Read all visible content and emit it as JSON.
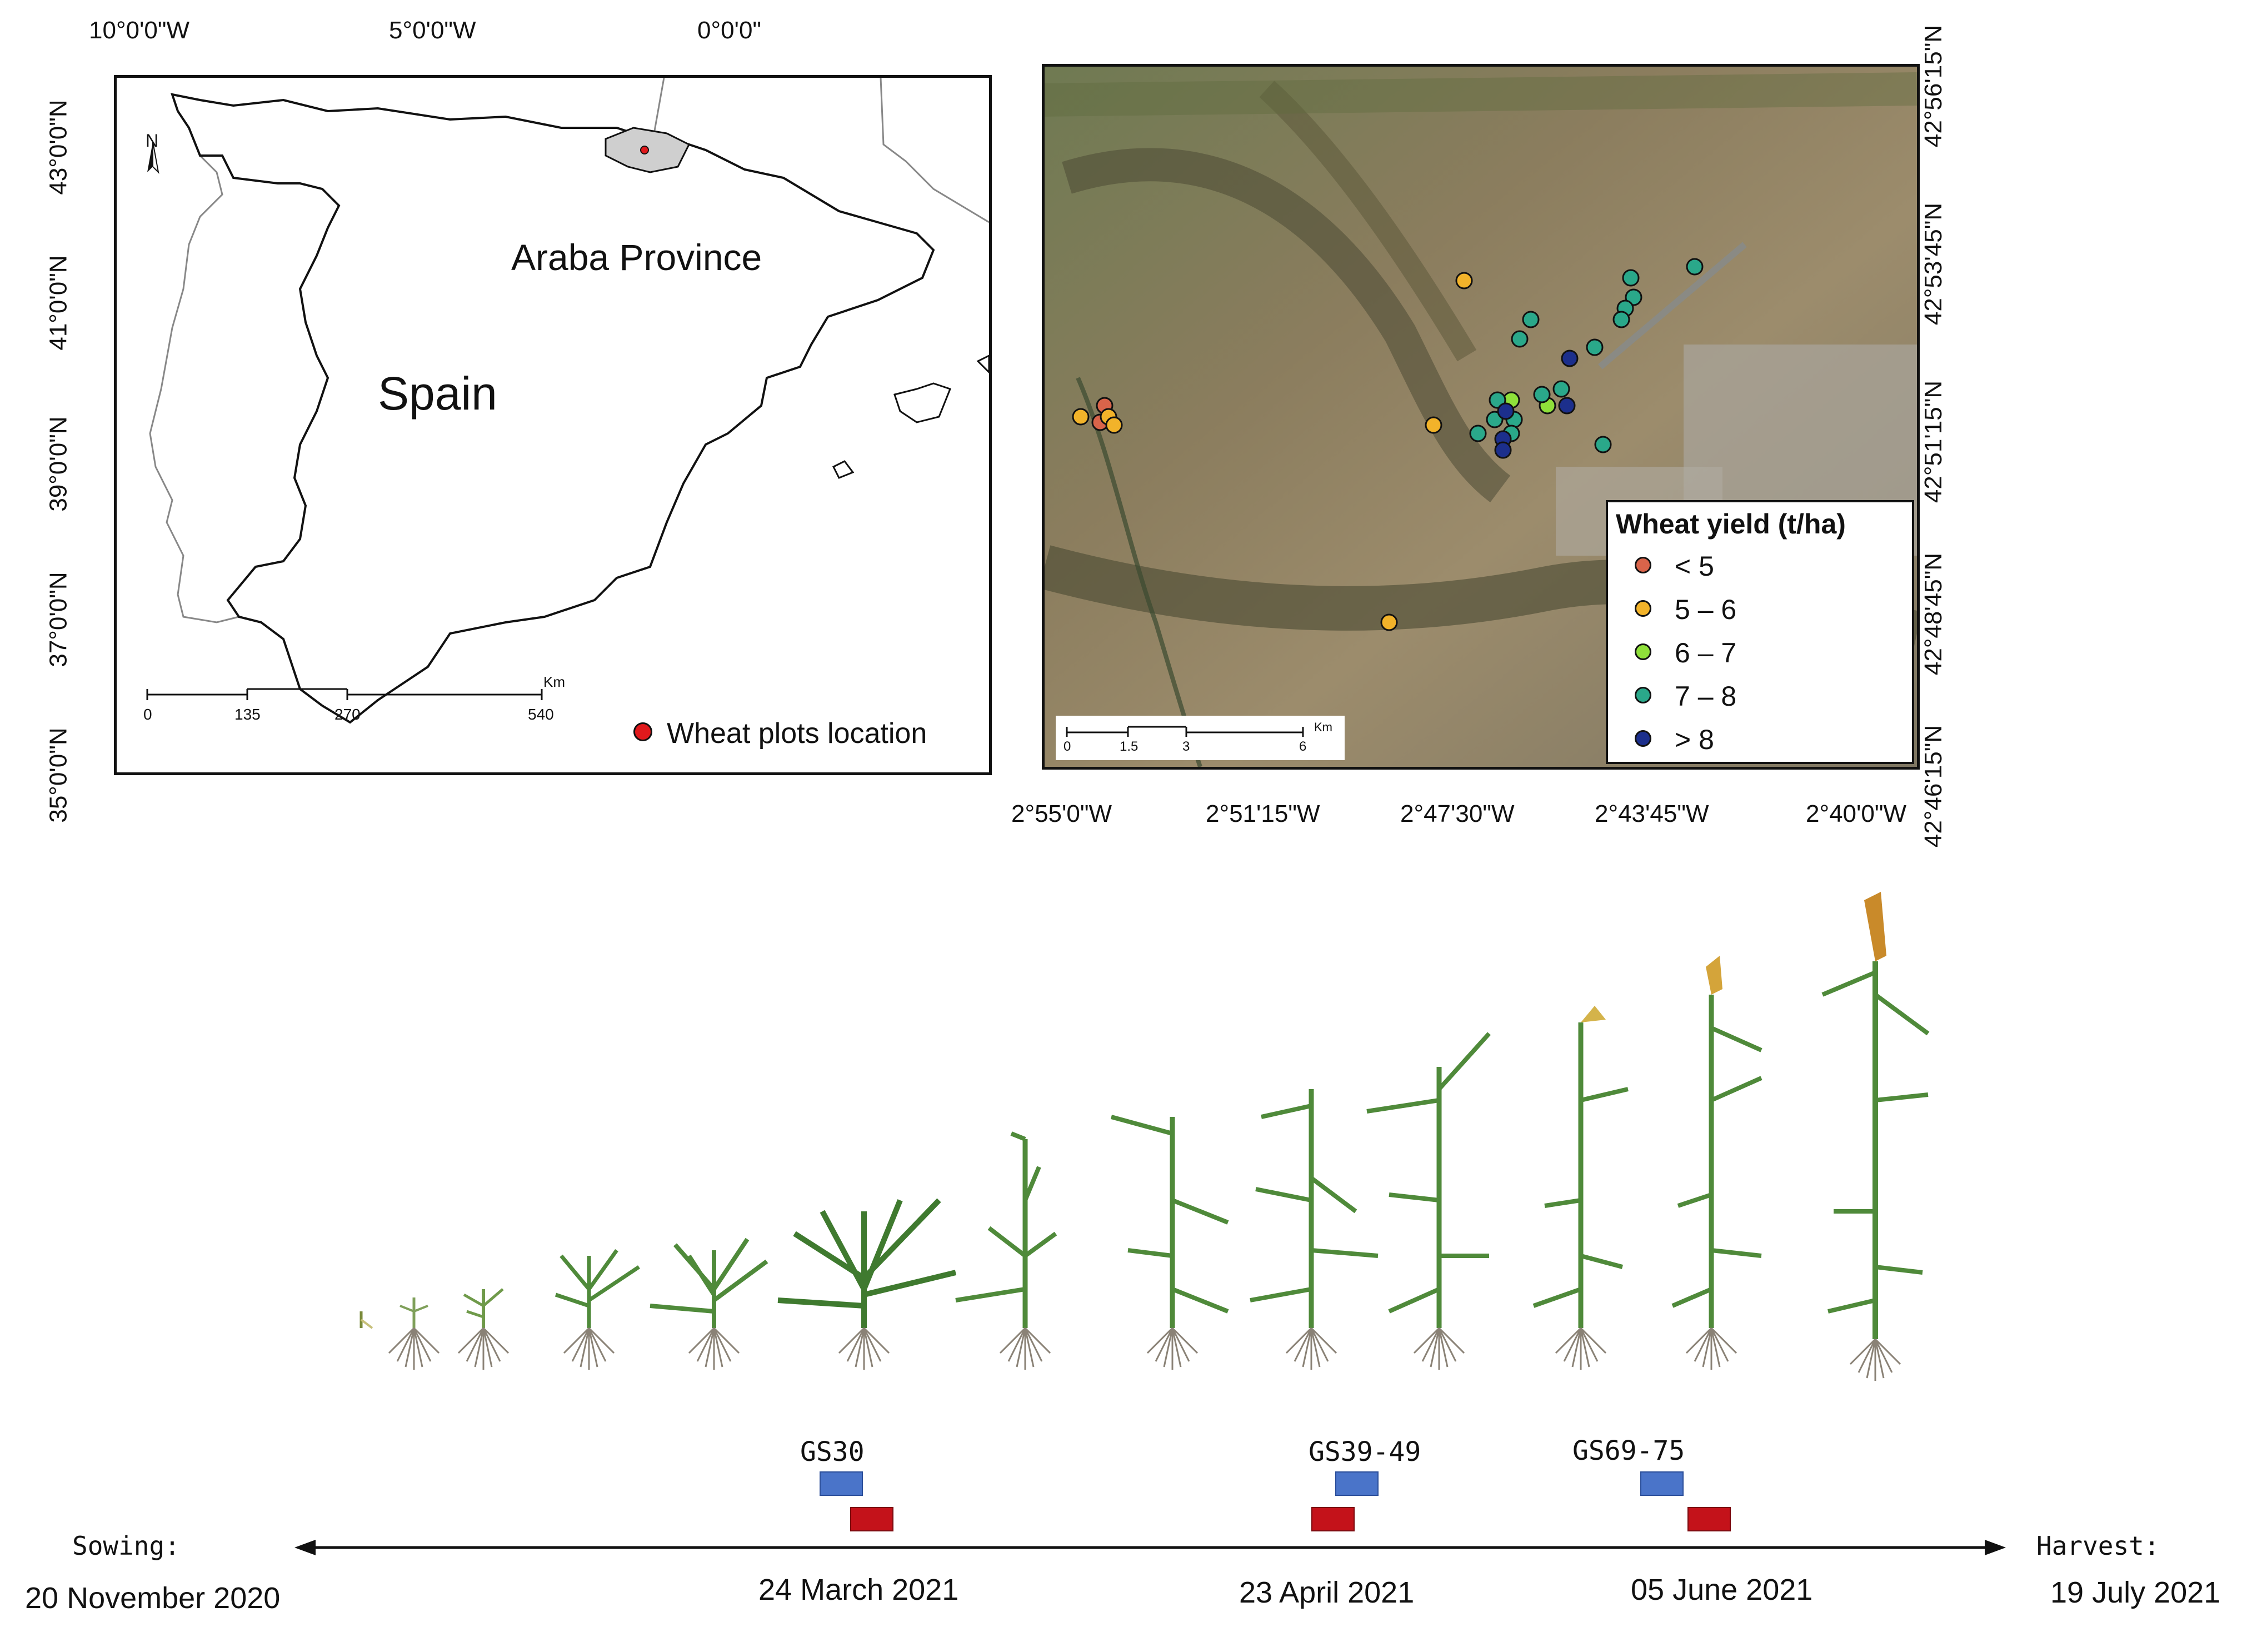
{
  "left_map": {
    "top_coords": [
      "10°0'0\"W",
      "5°0'0\"W",
      "0°0'0\""
    ],
    "left_coords": [
      "43°0'0\"N",
      "41°0'0\"N",
      "39°0'0\"N",
      "37°0'0\"N",
      "35°0'0\"N"
    ],
    "north_label": "N",
    "province_label": "Araba Province",
    "country_label": "Spain",
    "scale_ticks": [
      "0",
      "135",
      "270",
      "540"
    ],
    "scale_unit": "Km",
    "legend_label": "Wheat plots location",
    "legend_color": "#e0191c"
  },
  "right_map": {
    "bottom_coords": [
      "2°55'0\"W",
      "2°51'15\"W",
      "2°47'30\"W",
      "2°43'45\"W",
      "2°40'0\"W"
    ],
    "right_coords": [
      "42°56'15\"N",
      "42°53'45\"N",
      "42°51'15\"N",
      "42°48'45\"N",
      "42°46'15\"N"
    ],
    "scale_ticks": [
      "0",
      "1.5",
      "3",
      "6"
    ],
    "scale_unit": "Km",
    "legend_title": "Wheat yield (t/ha)",
    "legend_items": [
      {
        "label": "< 5",
        "color": "#d9644a"
      },
      {
        "label": "5 – 6",
        "color": "#f2b32a"
      },
      {
        "label": "6 – 7",
        "color": "#8fe03a"
      },
      {
        "label": "7 – 8",
        "color": "#2aa88a"
      },
      {
        "label": "> 8",
        "color": "#1c2f8c"
      }
    ]
  },
  "timeline": {
    "start_label": "Sowing:",
    "start_date": "20 November 2020",
    "end_label": "Harvest:",
    "end_date": "19 July 2021",
    "stages": [
      {
        "label": "GS30",
        "date": "24 March 2021"
      },
      {
        "label": "GS39-49",
        "date": "23 April 2021"
      },
      {
        "label": "GS69-75",
        "date": "05 June 2021"
      }
    ],
    "blue_color": "#4a74c9",
    "red_color": "#c4121a"
  }
}
